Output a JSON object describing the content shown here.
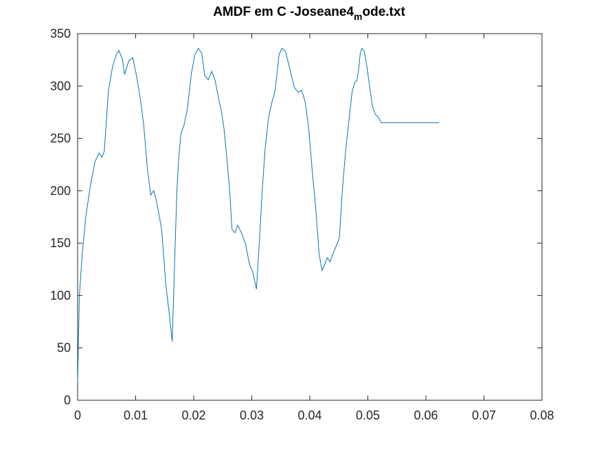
{
  "chart_data": {
    "type": "line",
    "title": "AMDF em C -Joseane4",
    "title_subscript": "m",
    "title_tail": "ode.txt",
    "xlabel": "",
    "ylabel": "",
    "xlim": [
      0,
      0.08
    ],
    "ylim": [
      0,
      350
    ],
    "x_ticks": [
      0,
      0.01,
      0.02,
      0.03,
      0.04,
      0.05,
      0.06,
      0.07,
      0.08
    ],
    "x_tick_labels": [
      "0",
      "0.01",
      "0.02",
      "0.03",
      "0.04",
      "0.05",
      "0.06",
      "0.07",
      "0.08"
    ],
    "y_ticks": [
      0,
      50,
      100,
      150,
      200,
      250,
      300,
      350
    ],
    "y_tick_labels": [
      "0",
      "50",
      "100",
      "150",
      "200",
      "250",
      "300",
      "350"
    ],
    "grid": false,
    "series_color": "#0072bd",
    "series": [
      {
        "x": [
          0,
          0.0003,
          0.0008,
          0.0014,
          0.0022,
          0.003,
          0.0037,
          0.0042,
          0.0046,
          0.0053,
          0.006,
          0.0066,
          0.0071,
          0.0077,
          0.0081,
          0.0088,
          0.0095,
          0.0101,
          0.0108,
          0.0114,
          0.012,
          0.0126,
          0.0131,
          0.0135,
          0.014,
          0.0145,
          0.0152,
          0.0158,
          0.0163,
          0.0167,
          0.0171,
          0.0174,
          0.0178,
          0.0183,
          0.0189,
          0.0196,
          0.0202,
          0.0208,
          0.0214,
          0.0219,
          0.0225,
          0.0231,
          0.0237,
          0.0243,
          0.0248,
          0.0252,
          0.0257,
          0.0262,
          0.0266,
          0.0271,
          0.0276,
          0.0282,
          0.0289,
          0.0296,
          0.0302,
          0.0308,
          0.0313,
          0.0318,
          0.0323,
          0.0329,
          0.0335,
          0.034,
          0.0344,
          0.0347,
          0.0352,
          0.0358,
          0.0365,
          0.0373,
          0.038,
          0.0386,
          0.0392,
          0.0398,
          0.0404,
          0.041,
          0.0416,
          0.0421,
          0.0426,
          0.043,
          0.0435,
          0.044,
          0.0446,
          0.0451,
          0.0456,
          0.0462,
          0.0468,
          0.0473,
          0.0478,
          0.0481,
          0.0484,
          0.0487,
          0.049,
          0.0494,
          0.0498,
          0.0503,
          0.0508,
          0.0513,
          0.0518,
          0.0523,
          0.0528,
          0.0534,
          0.054,
          0.0547,
          0.0553,
          0.0558,
          0.0563,
          0.0568,
          0.0573,
          0.0579,
          0.0585,
          0.0591,
          0.0597,
          0.0603,
          0.0608,
          0.0613,
          0.0618,
          0.0623
        ],
        "y": [
          17,
          100,
          140,
          175,
          205,
          228,
          236,
          232,
          238,
          295,
          318,
          329,
          334,
          326,
          311,
          324,
          327,
          311,
          288,
          262,
          222,
          196,
          200,
          192,
          178,
          162,
          110,
          82,
          56,
          130,
          200,
          230,
          255,
          262,
          278,
          312,
          330,
          336,
          331,
          310,
          306,
          314,
          305,
          288,
          275,
          260,
          232,
          200,
          163,
          160,
          167,
          160,
          150,
          130,
          122,
          106,
          150,
          200,
          240,
          270,
          285,
          295,
          315,
          330,
          336,
          333,
          318,
          299,
          294,
          296,
          285,
          260,
          220,
          185,
          140,
          124,
          130,
          136,
          132,
          140,
          148,
          155,
          200,
          240,
          270,
          295,
          304,
          305,
          315,
          332,
          336,
          333,
          320,
          300,
          280,
          273,
          270,
          265,
          265,
          265,
          265,
          265,
          265,
          265,
          265,
          265,
          265,
          265,
          265,
          265,
          265,
          265,
          265,
          265,
          265,
          265
        ]
      }
    ]
  }
}
